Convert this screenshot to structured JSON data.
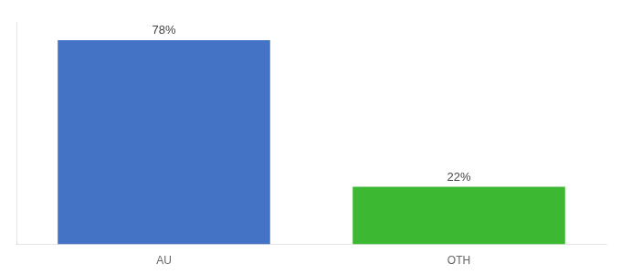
{
  "chart_data": {
    "type": "bar",
    "categories": [
      "AU",
      "OTH"
    ],
    "values": [
      78,
      22
    ],
    "value_labels": [
      "78%",
      "22%"
    ],
    "colors": [
      "#4472c4",
      "#3cb832"
    ],
    "ylim": [
      0,
      85
    ],
    "data_labels": true,
    "tick_labels": "x",
    "grid": false
  }
}
